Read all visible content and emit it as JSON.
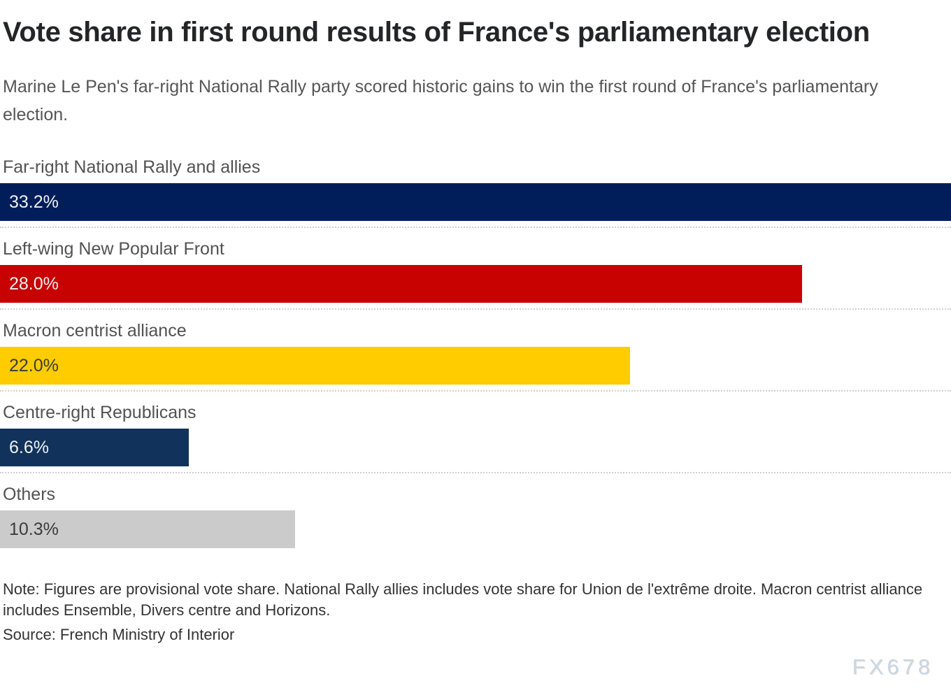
{
  "page": {
    "background": "#ffffff",
    "title_color": "#232527",
    "muted_text_color": "#555555",
    "note_text_color": "#333333",
    "separator_color": "#cfcfcf"
  },
  "chart_data": {
    "type": "bar",
    "orientation": "horizontal",
    "title": "Vote share in first round results of France's parliamentary election",
    "subtitle": "Marine Le Pen's far-right National Rally party scored historic gains to win the first round of France's parliamentary election.",
    "categories": [
      "Far-right National Rally and allies",
      "Left-wing New Popular Front",
      "Macron centrist alliance",
      "Centre-right Republicans",
      "Others"
    ],
    "values": [
      33.2,
      28.0,
      22.0,
      6.6,
      10.3
    ],
    "value_labels": [
      "33.2%",
      "28.0%",
      "22.0%",
      "6.6%",
      "10.3%"
    ],
    "bar_colors": [
      "#011e5a",
      "#c80101",
      "#ffcc00",
      "#11335b",
      "#cbcbcb"
    ],
    "value_label_colors": [
      "#f0f0f0",
      "#f0f0f0",
      "#3b3b3b",
      "#f0f0f0",
      "#3b3b3b"
    ],
    "xlim": [
      0,
      33.2
    ],
    "xlabel": "",
    "ylabel": "",
    "grid": false,
    "legend": false,
    "note": "Note: Figures are provisional vote share. National Rally allies includes vote share for Union de l'extrême droite. Macron centrist alliance includes Ensemble, Divers centre and Horizons.",
    "source": "Source: French Ministry of Interior"
  },
  "watermark": {
    "text": "FX678",
    "color": "#c9d7e6"
  }
}
